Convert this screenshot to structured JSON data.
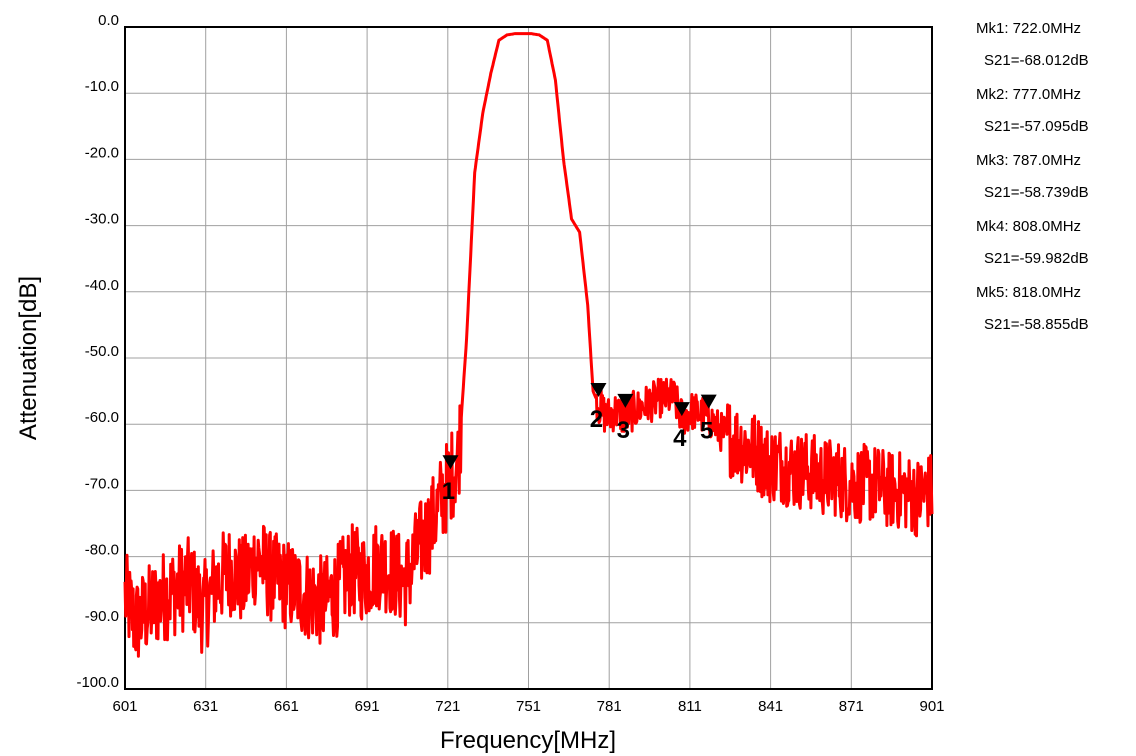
{
  "chart_data": {
    "type": "line",
    "title": "",
    "xlabel": "Frequency[MHz]",
    "ylabel": "Attenuation[dB]",
    "xlim": [
      601,
      901
    ],
    "ylim": [
      -100,
      0
    ],
    "x_ticks": [
      "601",
      "631",
      "661",
      "691",
      "721",
      "751",
      "781",
      "811",
      "841",
      "871",
      "901"
    ],
    "y_ticks": [
      "0.0",
      "-10.0",
      "-20.0",
      "-30.0",
      "-40.0",
      "-50.0",
      "-60.0",
      "-70.0",
      "-80.0",
      "-90.0",
      "-100.0"
    ],
    "grid": true,
    "line_color": "#ff0000",
    "series": [
      {
        "name": "",
        "x": [
          601,
          605,
          610,
          615,
          620,
          625,
          630,
          635,
          640,
          645,
          650,
          655,
          660,
          665,
          670,
          675,
          680,
          685,
          690,
          695,
          700,
          705,
          710,
          715,
          720,
          722,
          725,
          728,
          731,
          734,
          737,
          740,
          743,
          746,
          749,
          752,
          755,
          758,
          761,
          764,
          767,
          770,
          773,
          775,
          777,
          780,
          783,
          787,
          790,
          795,
          800,
          805,
          808,
          812,
          818,
          822,
          826,
          830,
          835,
          840,
          845,
          850,
          855,
          860,
          865,
          870,
          875,
          880,
          885,
          890,
          895,
          901
        ],
        "values": [
          -86,
          -90,
          -88,
          -86,
          -85,
          -84,
          -88,
          -84,
          -82,
          -84,
          -80,
          -83,
          -84,
          -85,
          -86,
          -87,
          -85,
          -82,
          -83,
          -81,
          -82,
          -84,
          -79,
          -75,
          -70,
          -68,
          -65,
          -47,
          -22,
          -13,
          -7,
          -2,
          -1.2,
          -1,
          -1,
          -1,
          -1.2,
          -2,
          -8,
          -20,
          -29,
          -31,
          -42,
          -55,
          -57,
          -59,
          -58,
          -59,
          -58,
          -57,
          -56,
          -56,
          -59,
          -58,
          -59,
          -61,
          -62,
          -63,
          -64,
          -66,
          -66,
          -67,
          -67,
          -68,
          -68,
          -69,
          -69,
          -69,
          -70,
          -70,
          -71,
          -70
        ]
      }
    ],
    "markers": [
      {
        "label": "1",
        "x": 722.0,
        "y": -68.012,
        "line1": "Mk1:  722.0MHz",
        "line2": "S21=-68.012dB"
      },
      {
        "label": "2",
        "x": 777.0,
        "y": -57.095,
        "line1": "Mk2:  777.0MHz",
        "line2": "S21=-57.095dB"
      },
      {
        "label": "3",
        "x": 787.0,
        "y": -58.739,
        "line1": "Mk3:  787.0MHz",
        "line2": "S21=-58.739dB"
      },
      {
        "label": "4",
        "x": 808.0,
        "y": -59.982,
        "line1": "Mk4:  808.0MHz",
        "line2": "S21=-59.982dB"
      },
      {
        "label": "5",
        "x": 818.0,
        "y": -58.855,
        "line1": "Mk5:  818.0MHz",
        "line2": "S21=-58.855dB"
      }
    ]
  }
}
